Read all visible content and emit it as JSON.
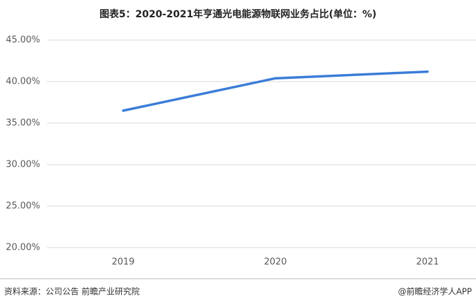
{
  "chart_data": {
    "type": "line",
    "title": "图表5：2020-2021年亨通光电能源物联网业务占比(单位：%)",
    "categories": [
      "2019",
      "2020",
      "2021"
    ],
    "series": [
      {
        "name": "能源物联网业务占比",
        "color": "#3b7dd8",
        "values": [
          36.5,
          40.4,
          41.2
        ]
      }
    ],
    "ylim": [
      20,
      45
    ],
    "yticks": [
      {
        "value": 20,
        "label": "20.00%"
      },
      {
        "value": 25,
        "label": "25.00%"
      },
      {
        "value": 30,
        "label": "30.00%"
      },
      {
        "value": 35,
        "label": "35.00%"
      },
      {
        "value": 40,
        "label": "40.00%"
      },
      {
        "value": 45,
        "label": "45.00%"
      }
    ],
    "grid": true,
    "source": "资料来源：公司公告 前瞻产业研究院",
    "credit": "@前瞻经济学人APP"
  }
}
